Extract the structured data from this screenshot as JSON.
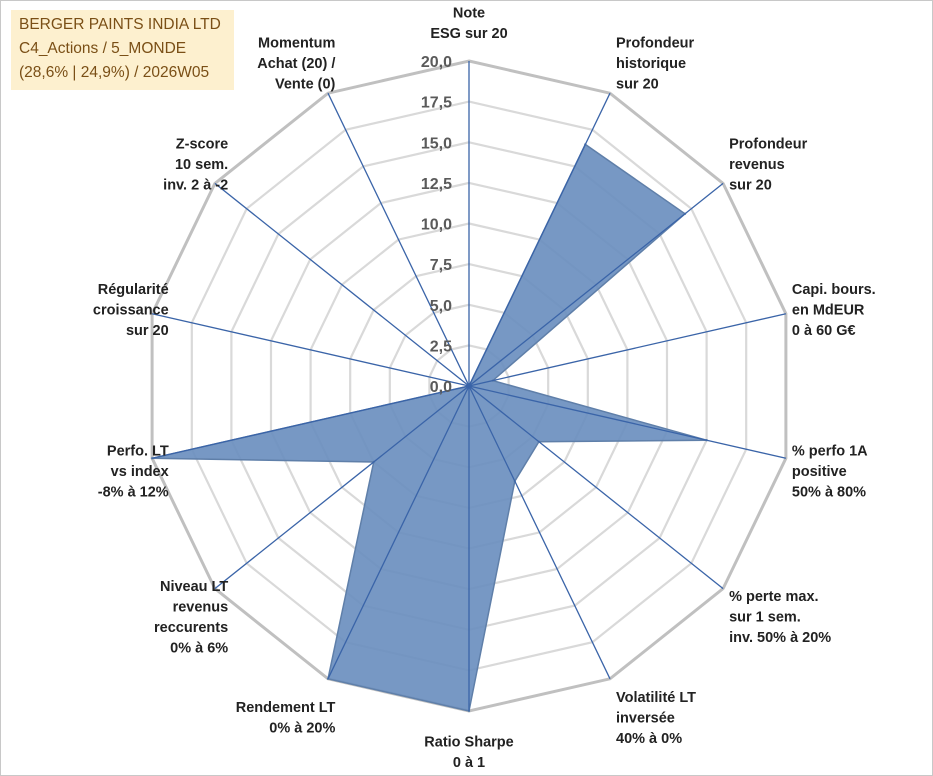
{
  "header": {
    "line1": "BERGER PAINTS INDIA LTD",
    "line2": "C4_Actions / 5_MONDE",
    "line3": "(28,6% | 24,9%) / 2026W05"
  },
  "colors": {
    "fill": "#6b8fbf",
    "outline": "#5f7fa9",
    "spoke": "#3a64a8",
    "grid_outer": "#c0c0c0",
    "grid_inner": "#d9d9d9",
    "header_bg": "#fdf0cf",
    "header_text": "#7a4f16"
  },
  "chart_data": {
    "type": "radar",
    "rmin": 0,
    "rmax": 20,
    "tick_step": 2.5,
    "tick_labels": [
      "0,0",
      "2,5",
      "5,0",
      "7,5",
      "10,0",
      "12,5",
      "15,0",
      "17,5",
      "20,0"
    ],
    "axes": [
      {
        "lines": [
          "Note",
          "ESG sur 20"
        ]
      },
      {
        "lines": [
          "Profondeur",
          "historique",
          "sur 20"
        ]
      },
      {
        "lines": [
          "Profondeur",
          "revenus",
          "sur 20"
        ]
      },
      {
        "lines": [
          "Capi. bours.",
          "en MdEUR",
          "0 à 60 G€"
        ]
      },
      {
        "lines": [
          "% perfo 1A",
          "positive",
          "50% à 80%"
        ]
      },
      {
        "lines": [
          "% perte max.",
          "sur 1 sem.",
          "inv. 50% à 20%"
        ]
      },
      {
        "lines": [
          "Volatilité LT",
          "inversée",
          "40% à 0%"
        ]
      },
      {
        "lines": [
          "Ratio Sharpe",
          "0 à 1"
        ]
      },
      {
        "lines": [
          "Rendement LT",
          "0% à 20%"
        ]
      },
      {
        "lines": [
          "Niveau LT",
          "revenus",
          "reccurents",
          "0% à 6%"
        ]
      },
      {
        "lines": [
          "Perfo. LT",
          "vs index",
          "-8% à 12%"
        ]
      },
      {
        "lines": [
          "Régularité",
          "croissance",
          "sur 20"
        ]
      },
      {
        "lines": [
          "Z-score",
          "10 sem.",
          "inv. 2 à -2"
        ]
      },
      {
        "lines": [
          "Momentum",
          "Achat (20) /",
          "Vente (0)"
        ]
      }
    ],
    "values": [
      0,
      16.5,
      17,
      1.5,
      15,
      5.5,
      6.5,
      20,
      20,
      7.5,
      20,
      0,
      0,
      0
    ],
    "grid": true,
    "legend": "none"
  }
}
